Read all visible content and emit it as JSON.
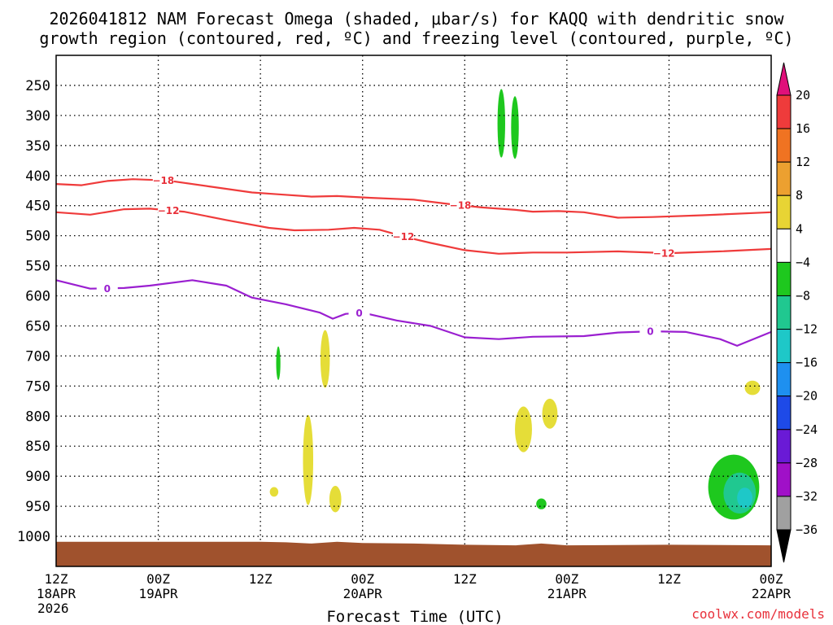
{
  "chart_data": {
    "type": "heatmap",
    "title_line1": "2026041812 NAM Forecast Omega (shaded, μbar/s) for KAQQ with dendritic snow",
    "title_line2": "growth region (contoured, red, ºC) and freezing level (contoured, purple, ºC)",
    "xlabel": "Forecast Time (UTC)",
    "credit": "coolwx.com/models",
    "y_axis": {
      "inverted": true,
      "range": [
        200,
        1050
      ],
      "ticks": [
        250,
        300,
        350,
        400,
        450,
        500,
        550,
        600,
        650,
        700,
        750,
        800,
        850,
        900,
        950,
        1000
      ]
    },
    "x_axis": {
      "range_hours": [
        0,
        84
      ],
      "ticks": [
        {
          "hour": 0,
          "l1": "12Z",
          "l2": "18APR",
          "l3": "2026"
        },
        {
          "hour": 12,
          "l1": "00Z",
          "l2": "19APR",
          "l3": ""
        },
        {
          "hour": 24,
          "l1": "12Z",
          "l2": "",
          "l3": ""
        },
        {
          "hour": 36,
          "l1": "00Z",
          "l2": "20APR",
          "l3": ""
        },
        {
          "hour": 48,
          "l1": "12Z",
          "l2": "",
          "l3": ""
        },
        {
          "hour": 60,
          "l1": "00Z",
          "l2": "21APR",
          "l3": ""
        },
        {
          "hour": 72,
          "l1": "12Z",
          "l2": "",
          "l3": ""
        },
        {
          "hour": 84,
          "l1": "00Z",
          "l2": "22APR",
          "l3": ""
        }
      ]
    },
    "colorbar": {
      "labels": [
        "20",
        "16",
        "12",
        "8",
        "4",
        "−4",
        "−8",
        "−12",
        "−16",
        "−20",
        "−24",
        "−28",
        "−32",
        "−36"
      ],
      "colors": [
        "#e8367a",
        "#ef3b3b",
        "#f07322",
        "#eca030",
        "#e8d434",
        "#ffffff",
        "#1ec81e",
        "#20c890",
        "#1ec8c8",
        "#1e90f0",
        "#1e4ae8",
        "#6a1ad6",
        "#a010c8",
        "#a0a0a0"
      ],
      "top_triangle": "#e0107a",
      "bottom_triangle": "#000000"
    },
    "ground_color": "#a0522d",
    "series": [
      {
        "name": "-18 C isotherm",
        "color": "#ef3b3b",
        "label": "−18",
        "label_hours": [
          12.6,
          47.5
        ],
        "points": [
          [
            0,
            414
          ],
          [
            3,
            416
          ],
          [
            6,
            409
          ],
          [
            9,
            406
          ],
          [
            13,
            408
          ],
          [
            18,
            418
          ],
          [
            23,
            428
          ],
          [
            26,
            431
          ],
          [
            30,
            435
          ],
          [
            33,
            434
          ],
          [
            37,
            437
          ],
          [
            42,
            440
          ],
          [
            46,
            447
          ],
          [
            50,
            453
          ],
          [
            54,
            457
          ],
          [
            56,
            460
          ],
          [
            59,
            459
          ],
          [
            62,
            461
          ],
          [
            66,
            470
          ],
          [
            70,
            469
          ],
          [
            76,
            466
          ],
          [
            84,
            461
          ]
        ]
      },
      {
        "name": "-12 C isotherm",
        "color": "#ef3b3b",
        "label": "−12",
        "label_hours": [
          13.2,
          40.8,
          71.4
        ],
        "points": [
          [
            0,
            461
          ],
          [
            4,
            465
          ],
          [
            8,
            456
          ],
          [
            11,
            455
          ],
          [
            15,
            460
          ],
          [
            20,
            474
          ],
          [
            25,
            487
          ],
          [
            28,
            491
          ],
          [
            32,
            490
          ],
          [
            35,
            487
          ],
          [
            38,
            490
          ],
          [
            41,
            502
          ],
          [
            44,
            512
          ],
          [
            48,
            524
          ],
          [
            52,
            530
          ],
          [
            56,
            528
          ],
          [
            60,
            528
          ],
          [
            66,
            526
          ],
          [
            72,
            529
          ],
          [
            78,
            526
          ],
          [
            84,
            522
          ]
        ]
      },
      {
        "name": "0 C freezing level",
        "color": "#9a1fd0",
        "label": "0",
        "label_hours": [
          6,
          35.6,
          69.8
        ],
        "points": [
          [
            0,
            574
          ],
          [
            4,
            588
          ],
          [
            8,
            587
          ],
          [
            11,
            583
          ],
          [
            16,
            574
          ],
          [
            20,
            583
          ],
          [
            23,
            603
          ],
          [
            27,
            614
          ],
          [
            31,
            628
          ],
          [
            32.5,
            638
          ],
          [
            34,
            630
          ],
          [
            36,
            628
          ],
          [
            40,
            641
          ],
          [
            44,
            650
          ],
          [
            48,
            669
          ],
          [
            52,
            672
          ],
          [
            56,
            668
          ],
          [
            62,
            667
          ],
          [
            66,
            661
          ],
          [
            70,
            659
          ],
          [
            74,
            660
          ],
          [
            78,
            672
          ],
          [
            80,
            683
          ],
          [
            84,
            660
          ]
        ]
      }
    ],
    "shaded_regions": [
      {
        "name": "green-upper-1",
        "bin": "-4 to -8",
        "hour": 52.3,
        "p_center": 313,
        "dh": 0.45,
        "dp": 57
      },
      {
        "name": "green-upper-2",
        "bin": "-4 to -8",
        "hour": 53.9,
        "p_center": 320,
        "dh": 0.45,
        "dp": 52
      },
      {
        "name": "green-low-1",
        "bin": "-4 to -8",
        "hour": 26.1,
        "p_center": 712,
        "dh": 0.25,
        "dp": 28
      },
      {
        "name": "green-low-2",
        "bin": "-4 to -8",
        "hour": 57.0,
        "p_center": 946,
        "dh": 0.6,
        "dp": 9
      },
      {
        "name": "green-big",
        "bin": "-4 to -8",
        "hour": 79.6,
        "p_center": 918,
        "dh": 3.0,
        "dp": 54
      },
      {
        "name": "teal-core",
        "bin": "-8 to -12",
        "hour": 80.3,
        "p_center": 928,
        "dh": 1.9,
        "dp": 34
      },
      {
        "name": "cyan-core",
        "bin": "-12 to -16",
        "hour": 80.9,
        "p_center": 936,
        "dh": 0.9,
        "dp": 17
      },
      {
        "name": "yellow-1",
        "bin": "4 to 8",
        "hour": 31.6,
        "p_center": 705,
        "dh": 0.55,
        "dp": 48
      },
      {
        "name": "yellow-2",
        "bin": "4 to 8",
        "hour": 29.6,
        "p_center": 873,
        "dh": 0.6,
        "dp": 75
      },
      {
        "name": "yellow-3",
        "bin": "4 to 8",
        "hour": 32.8,
        "p_center": 938,
        "dh": 0.7,
        "dp": 22
      },
      {
        "name": "yellow-4",
        "bin": "4 to 8",
        "hour": 25.6,
        "p_center": 926,
        "dh": 0.5,
        "dp": 8
      },
      {
        "name": "yellow-5",
        "bin": "4 to 8",
        "hour": 54.9,
        "p_center": 822,
        "dh": 1.0,
        "dp": 38
      },
      {
        "name": "yellow-6",
        "bin": "4 to 8",
        "hour": 58.0,
        "p_center": 796,
        "dh": 0.9,
        "dp": 25
      },
      {
        "name": "yellow-7",
        "bin": "4 to 8",
        "hour": 81.8,
        "p_center": 753,
        "dh": 0.9,
        "dp": 12
      }
    ]
  }
}
